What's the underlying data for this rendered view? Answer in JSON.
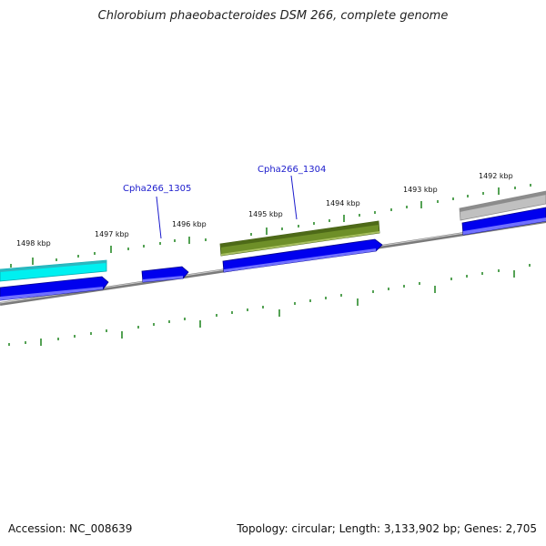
{
  "title": "Chlorobium phaeobacteroides DSM 266, complete genome",
  "footer": {
    "accession": "Accession: NC_008639",
    "summary": "Topology: circular; Length: 3,133,902 bp; Genes: 2,705"
  },
  "ruler_labels": [
    "1498 kbp",
    "1497 kbp",
    "1496 kbp",
    "1495 kbp",
    "1494 kbp",
    "1493 kbp",
    "1492 kbp"
  ],
  "gene_labels": [
    "Cpha266_1305",
    "Cpha266_1304"
  ],
  "colors": {
    "backbone": "#888888",
    "cds": "#0000ee",
    "cyan_feature": "#00e5ee",
    "olive_feature": "#6b8e23",
    "gray_feature": "#b0b0b0",
    "tick": "#2a8a2a",
    "label": "#1a1acc"
  }
}
